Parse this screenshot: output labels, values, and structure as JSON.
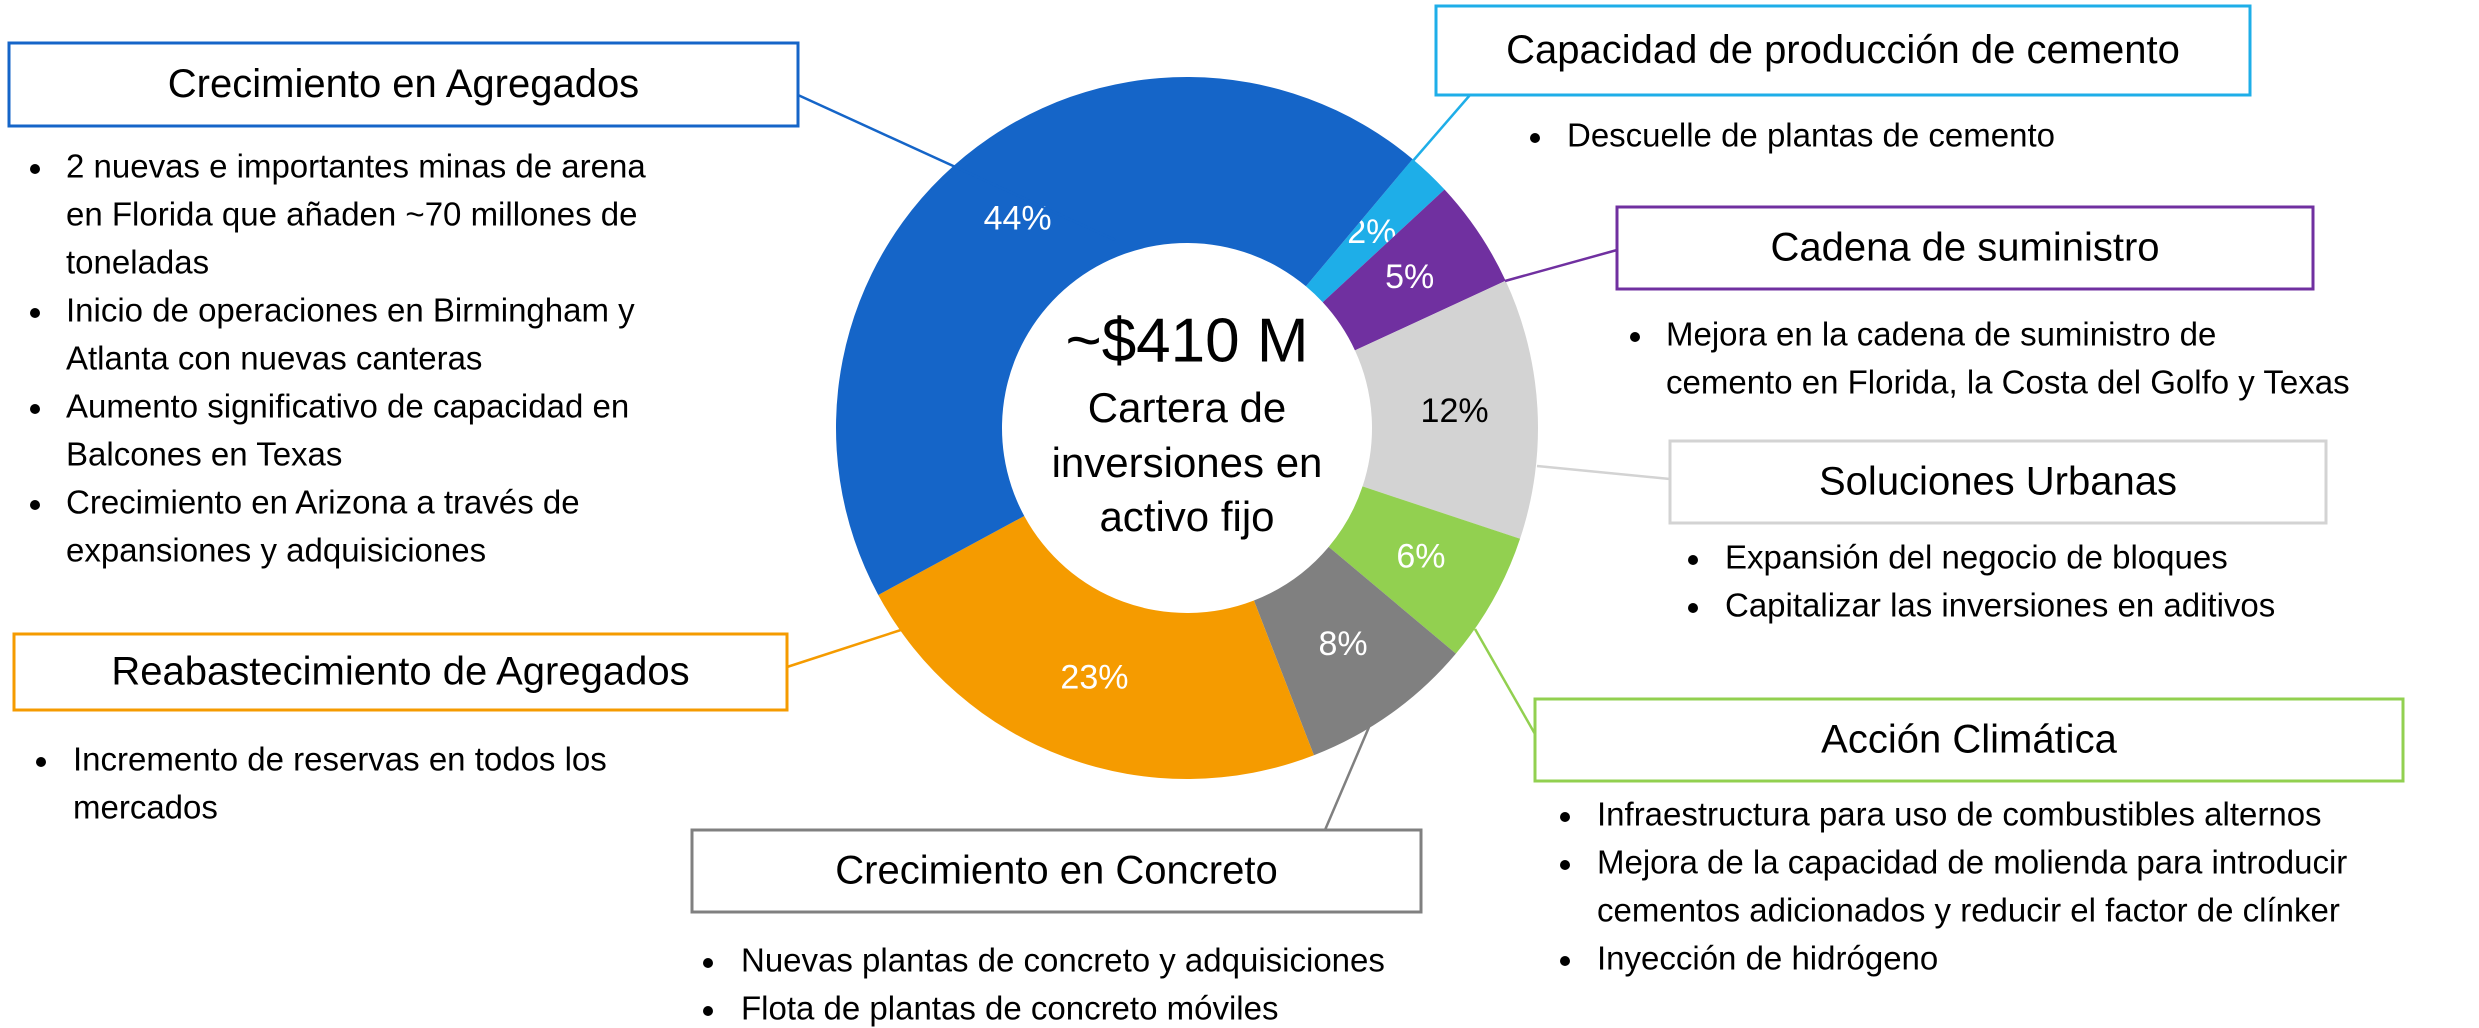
{
  "chart_data": {
    "type": "pie",
    "donut": true,
    "center_texts": [
      "~$410 M",
      "Cartera de",
      "inversiones en",
      "activo fijo"
    ],
    "categories": [
      "Capacidad de producción de cemento",
      "Cadena de suministro",
      "Soluciones Urbanas",
      "Acción Climática",
      "Crecimiento en Concreto",
      "Reabastecimiento de Agregados",
      "Crecimiento en Agregados"
    ],
    "values": [
      2,
      5,
      12,
      6,
      8,
      23,
      44
    ],
    "value_labels": [
      "2%",
      "5%",
      "12%",
      "6%",
      "8%",
      "23%",
      "44%"
    ],
    "colors": [
      "#1eaee8",
      "#7030a0",
      "#d3d3d3",
      "#92d050",
      "#808080",
      "#f59b00",
      "#1565c8"
    ],
    "label_colors": [
      "#ffffff",
      "#ffffff",
      "#000000",
      "#ffffff",
      "#ffffff",
      "#ffffff",
      "#ffffff"
    ],
    "details": [
      [
        [
          "Descuelle de plantas de cemento"
        ]
      ],
      [
        [
          "Mejora en la cadena de suministro de",
          "cemento en Florida, la Costa del Golfo y Texas"
        ]
      ],
      [
        [
          "Expansión del negocio de bloques"
        ],
        [
          "Capitalizar las inversiones en aditivos"
        ]
      ],
      [
        [
          "Infraestructura para uso de combustibles alternos"
        ],
        [
          "Mejora de la capacidad de molienda para introducir",
          "cementos adicionados  y reducir el factor de clínker"
        ],
        [
          "Inyección de hidrógeno"
        ]
      ],
      [
        [
          "Nuevas plantas de concreto y adquisiciones"
        ],
        [
          "Flota de plantas de concreto móviles"
        ]
      ],
      [
        [
          "Incremento de reservas en todos los",
          "mercados"
        ]
      ],
      [
        [
          "2 nuevas e importantes minas de arena",
          "en Florida que añaden ~70 millones de",
          "toneladas"
        ],
        [
          "Inicio de operaciones en Birmingham y",
          "Atlanta con nuevas canteras"
        ],
        [
          "Aumento significativo de capacidad en",
          "Balcones en Texas"
        ],
        [
          "Crecimiento en Arizona a través de",
          "expansiones y adquisiciones"
        ]
      ]
    ]
  }
}
